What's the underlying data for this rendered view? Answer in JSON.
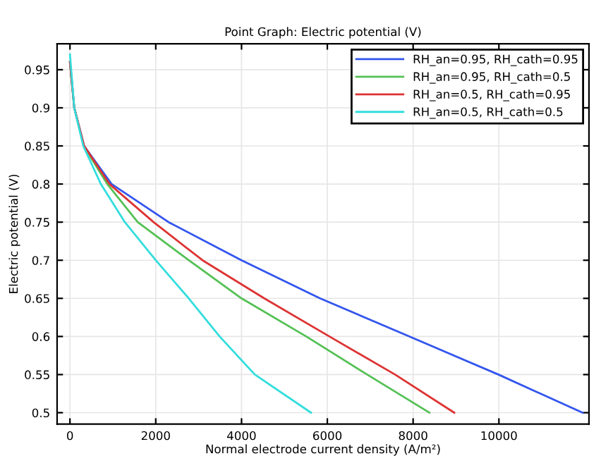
{
  "chart_data": {
    "type": "line",
    "title": "Point Graph: Electric potential (V)",
    "xlabel": "Normal electrode current density (A/m²)",
    "ylabel": "Electric potential (V)",
    "xlim": [
      -300,
      12100
    ],
    "ylim": [
      0.485,
      0.984
    ],
    "xticks": [
      0,
      2000,
      4000,
      6000,
      8000,
      10000
    ],
    "yticks": [
      0.5,
      0.55,
      0.6,
      0.65,
      0.7,
      0.75,
      0.8,
      0.85,
      0.9,
      0.95
    ],
    "grid": true,
    "legend": "top right",
    "line_style": "solid",
    "series": [
      {
        "name": "RH_an=0.95, RH_cath=0.95",
        "color": "#3355ee",
        "x": [
          0,
          100,
          330,
          970,
          2300,
          4000,
          5830,
          7910,
          9990,
          11950
        ],
        "values": [
          0.96,
          0.9,
          0.85,
          0.8,
          0.75,
          0.7,
          0.65,
          0.6,
          0.55,
          0.5
        ]
      },
      {
        "name": "RH_an=0.95, RH_cath=0.5",
        "color": "#55c055",
        "x": [
          0,
          100,
          320,
          870,
          1580,
          2770,
          4000,
          5510,
          6930,
          8380
        ],
        "values": [
          0.96,
          0.9,
          0.85,
          0.8,
          0.75,
          0.7,
          0.65,
          0.6,
          0.55,
          0.5
        ]
      },
      {
        "name": "RH_an=0.5, RH_cath=0.95",
        "color": "#dd3333",
        "x": [
          0,
          100,
          330,
          920,
          1950,
          3090,
          4530,
          6050,
          7580,
          8960
        ],
        "values": [
          0.96,
          0.9,
          0.85,
          0.8,
          0.75,
          0.7,
          0.65,
          0.6,
          0.55,
          0.5
        ]
      },
      {
        "name": "RH_an=0.5, RH_cath=0.5",
        "color": "#33dddd",
        "x": [
          0,
          100,
          310,
          720,
          1280,
          2000,
          2770,
          3490,
          4310,
          5620
        ],
        "values": [
          0.97,
          0.9,
          0.85,
          0.8,
          0.75,
          0.7,
          0.65,
          0.6,
          0.55,
          0.5
        ]
      }
    ]
  }
}
